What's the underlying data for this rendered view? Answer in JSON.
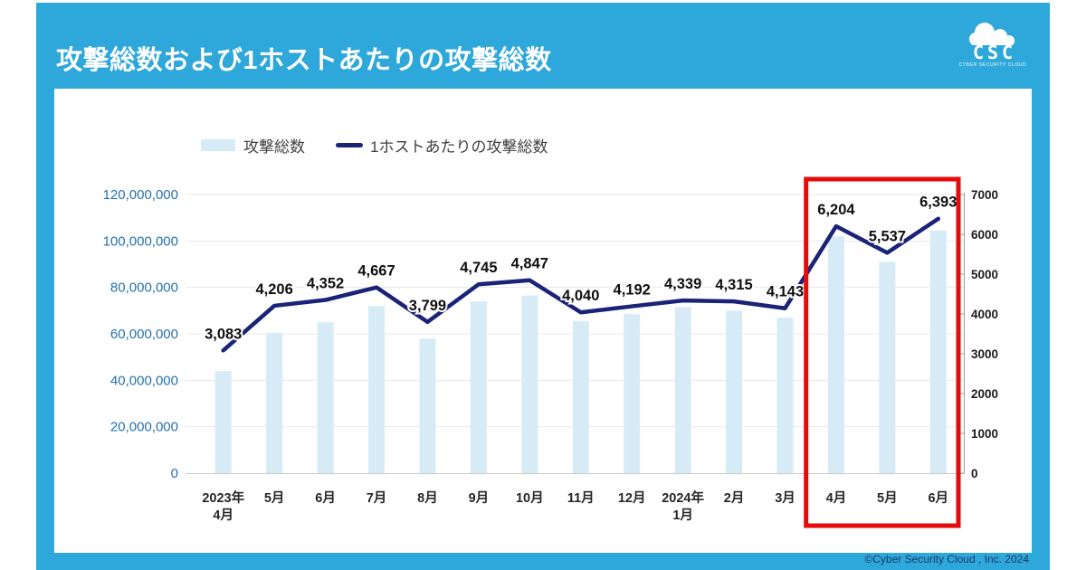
{
  "page": {
    "title": "攻撃総数および1ホストあたりの攻撃総数",
    "logo": {
      "acronym": "CSC",
      "name": "CYBER SECURITY CLOUD"
    },
    "footer": {
      "copyright": "©Cyber Security Cloud , Inc. 2024"
    },
    "colors": {
      "brand_blue": "#2EA7DA",
      "bar_fill": "#D7EBF7",
      "line_stroke": "#1A2378",
      "left_axis_label": "#2471AE",
      "right_axis_label": "#1A1A1A",
      "x_axis_label": "#262626",
      "grid": "#E8E8E8",
      "axis_line": "#9B9B9B",
      "highlight_red": "#E60A0A",
      "footer_text": "#1C3A66",
      "legend_text": "#3F3F3F"
    }
  },
  "chart_data": {
    "type": "combo",
    "title": "攻撃総数および1ホストあたりの攻撃総数",
    "categories": [
      [
        "2023年",
        "4月"
      ],
      [
        "5月"
      ],
      [
        "6月"
      ],
      [
        "7月"
      ],
      [
        "8月"
      ],
      [
        "9月"
      ],
      [
        "10月"
      ],
      [
        "11月"
      ],
      [
        "12月"
      ],
      [
        "2024年",
        "1月"
      ],
      [
        "2月"
      ],
      [
        "3月"
      ],
      [
        "4月"
      ],
      [
        "5月"
      ],
      [
        "6月"
      ]
    ],
    "series": [
      {
        "name": "攻撃総数",
        "type": "bar",
        "axis": "left",
        "values": [
          44000000,
          60500000,
          65000000,
          72000000,
          58000000,
          74000000,
          76500000,
          65500000,
          68500000,
          71500000,
          70000000,
          67000000,
          102000000,
          91000000,
          104500000
        ]
      },
      {
        "name": "1ホストあたりの攻撃総数",
        "type": "line",
        "axis": "right",
        "values": [
          3083,
          4206,
          4352,
          4667,
          3799,
          4745,
          4847,
          4040,
          4192,
          4339,
          4315,
          4143,
          6204,
          5537,
          6393
        ],
        "labels": [
          "3,083",
          "4,206",
          "4,352",
          "4,667",
          "3,799",
          "4,745",
          "4,847",
          "4,040",
          "4,192",
          "4,339",
          "4,315",
          "4,143",
          "6,204",
          "5,537",
          "6,393"
        ]
      }
    ],
    "left_axis": {
      "min": 0,
      "max": 120000000,
      "tick_values": [
        0,
        20000000,
        40000000,
        60000000,
        80000000,
        100000000,
        120000000
      ],
      "tick_labels": [
        "0",
        "20,000,000",
        "40,000,000",
        "60,000,000",
        "80,000,000",
        "100,000,000",
        "120,000,000"
      ]
    },
    "right_axis": {
      "min": 0,
      "max": 7000,
      "tick_values": [
        0,
        1000,
        2000,
        3000,
        4000,
        5000,
        6000,
        7000
      ],
      "tick_labels": [
        "0",
        "1000",
        "2000",
        "3000",
        "4000",
        "5000",
        "6000",
        "7000"
      ]
    },
    "highlight": {
      "from_index": 12,
      "to_index": 14,
      "months": [
        "4月",
        "5月",
        "6月"
      ]
    },
    "grid": "horizontal",
    "legend_position": "top-left"
  }
}
